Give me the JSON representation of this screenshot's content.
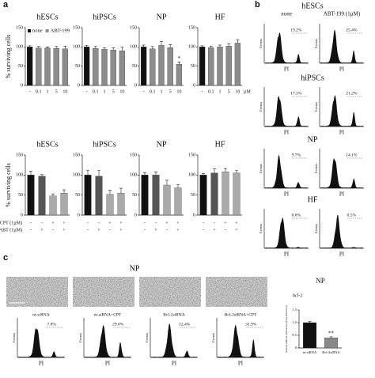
{
  "panels": {
    "a": "a",
    "b": "b",
    "c": "c"
  },
  "chart_data": [
    {
      "type": "bar",
      "title": "hESCs",
      "ylabel": "% surviving cells",
      "categories": [
        "-",
        "0.1",
        "1",
        "5",
        "10"
      ],
      "series": [
        {
          "name": "none",
          "color": "#111111",
          "values": [
            100,
            null,
            null,
            null,
            null
          ],
          "errors": [
            3,
            null,
            null,
            null,
            null
          ]
        },
        {
          "name": "ABT-199",
          "color": "#8c8c8c",
          "values": [
            null,
            97,
            97,
            96,
            95
          ],
          "errors": [
            null,
            4,
            3,
            5,
            7
          ]
        }
      ],
      "ylim": [
        0,
        150
      ],
      "yticks": [
        0,
        50,
        100,
        150
      ]
    },
    {
      "type": "bar",
      "title": "hiPSCs",
      "categories": [
        "-",
        "0.1",
        "1",
        "5",
        "10"
      ],
      "series": [
        {
          "color": "#111111",
          "values": [
            100,
            null,
            null,
            null,
            null
          ],
          "errors": [
            4,
            null,
            null,
            null,
            null
          ]
        },
        {
          "color": "#8c8c8c",
          "values": [
            null,
            96,
            94,
            92,
            90
          ],
          "errors": [
            null,
            5,
            4,
            6,
            9
          ]
        }
      ],
      "ylim": [
        0,
        150
      ],
      "yticks": [
        0,
        50,
        100,
        150
      ]
    },
    {
      "type": "bar",
      "title": "NP",
      "categories": [
        "-",
        "0.1",
        "1",
        "5",
        "10"
      ],
      "annotation": "*",
      "series": [
        {
          "color": "#111111",
          "values": [
            100,
            null,
            null,
            null,
            null
          ],
          "errors": [
            5,
            null,
            null,
            null,
            null
          ]
        },
        {
          "color": "#8c8c8c",
          "values": [
            null,
            95,
            104,
            98,
            55
          ],
          "errors": [
            null,
            6,
            10,
            8,
            6
          ]
        }
      ],
      "ylim": [
        0,
        150
      ],
      "yticks": [
        0,
        50,
        100,
        150
      ]
    },
    {
      "type": "bar",
      "title": "HF",
      "categories": [
        "-",
        "0.1",
        "1",
        "5",
        "10"
      ],
      "unit": "µM",
      "series": [
        {
          "color": "#111111",
          "values": [
            100,
            null,
            null,
            null,
            null
          ],
          "errors": [
            3,
            null,
            null,
            null,
            null
          ]
        },
        {
          "color": "#8c8c8c",
          "values": [
            null,
            98,
            100,
            102,
            110
          ],
          "errors": [
            null,
            4,
            5,
            6,
            8
          ]
        }
      ],
      "ylim": [
        0,
        150
      ],
      "yticks": [
        0,
        50,
        100,
        150
      ]
    },
    {
      "type": "bar",
      "title": "hESCs",
      "ylabel": "% surviving cells",
      "values": [
        100,
        97,
        48,
        55
      ],
      "errors": [
        10,
        4,
        5,
        8
      ],
      "colors": [
        "#111111",
        "#555555",
        "#aaaaaa",
        "#aaaaaa"
      ],
      "conditions": [
        {
          "label": "CPT (1µM)",
          "marks": [
            "-",
            "-",
            "+",
            "+"
          ]
        },
        {
          "label": "ABT (1µM)",
          "marks": [
            "-",
            "+",
            "-",
            "+"
          ]
        }
      ],
      "ylim": [
        0,
        150
      ],
      "yticks": [
        0,
        50,
        100,
        150
      ]
    },
    {
      "type": "bar",
      "title": "hiPSCs",
      "values": [
        100,
        97,
        52,
        55
      ],
      "errors": [
        12,
        14,
        10,
        12
      ],
      "colors": [
        "#111111",
        "#555555",
        "#aaaaaa",
        "#aaaaaa"
      ],
      "conditions": [
        {
          "marks": [
            "-",
            "-",
            "+",
            "+"
          ]
        },
        {
          "marks": [
            "-",
            "+",
            "-",
            "+"
          ]
        }
      ],
      "ylim": [
        0,
        150
      ],
      "yticks": [
        0,
        50,
        100,
        150
      ]
    },
    {
      "type": "bar",
      "title": "NP",
      "values": [
        100,
        100,
        75,
        68
      ],
      "errors": [
        6,
        8,
        12,
        8
      ],
      "colors": [
        "#111111",
        "#555555",
        "#aaaaaa",
        "#aaaaaa"
      ],
      "conditions": [
        {
          "marks": [
            "-",
            "-",
            "+",
            "+"
          ]
        },
        {
          "marks": [
            "-",
            "+",
            "-",
            "+"
          ]
        }
      ],
      "ylim": [
        0,
        150
      ],
      "yticks": [
        0,
        50,
        100,
        150
      ]
    },
    {
      "type": "bar",
      "title": "HF",
      "values": [
        100,
        105,
        108,
        105
      ],
      "errors": [
        4,
        10,
        8,
        6
      ],
      "colors": [
        "#111111",
        "#555555",
        "#aaaaaa",
        "#aaaaaa"
      ],
      "conditions": [
        {
          "marks": [
            "-",
            "-",
            "+",
            "+"
          ]
        },
        {
          "marks": [
            "-",
            "+",
            "-",
            "+"
          ]
        }
      ],
      "ylim": [
        0,
        150
      ],
      "yticks": [
        0,
        50,
        100,
        150
      ]
    },
    {
      "type": "bar",
      "title": "NP",
      "subtitle": "bcl-2",
      "ylabel": "relative mRNA expression (fold induction)",
      "categories": [
        "nt-siRNA",
        "Bcl-2siRNA"
      ],
      "values": [
        1.0,
        0.4
      ],
      "errors": [
        0.04,
        0.04
      ],
      "colors": [
        "#111111",
        "#888888"
      ],
      "annotation": "**",
      "ylim": [
        0,
        1.5
      ],
      "yticks": [
        0,
        0.5,
        {
          "value": 1,
          "label": "1.0"
        },
        1.5
      ]
    }
  ],
  "flow_b": {
    "columns": [
      "none",
      "ABT-199 (1µM)"
    ],
    "x_label": "PI",
    "y_label": "Events",
    "rows": [
      {
        "label": "hESCs",
        "percents": [
          "19.2%",
          "25.4%"
        ]
      },
      {
        "label": "hiPSCs",
        "percents": [
          "17.1%",
          "21.2%"
        ]
      },
      {
        "label": "NP",
        "percents": [
          "9.7%",
          "14.1%"
        ]
      },
      {
        "label": "HF",
        "percents": [
          "0.6%",
          "0.5%"
        ]
      }
    ]
  },
  "flow_c": {
    "title": "NP",
    "x_label": "PI",
    "y_label": "Events",
    "samples": [
      {
        "label": "nt-siRNA",
        "percent": "7.8%"
      },
      {
        "label": "nt-siRNA+CPT",
        "percent": "29.0%"
      },
      {
        "label": "Bcl-2siRNA",
        "percent": "12.4%"
      },
      {
        "label": "Bcl-2siRNA+CPT",
        "percent": "31.9%"
      }
    ]
  }
}
